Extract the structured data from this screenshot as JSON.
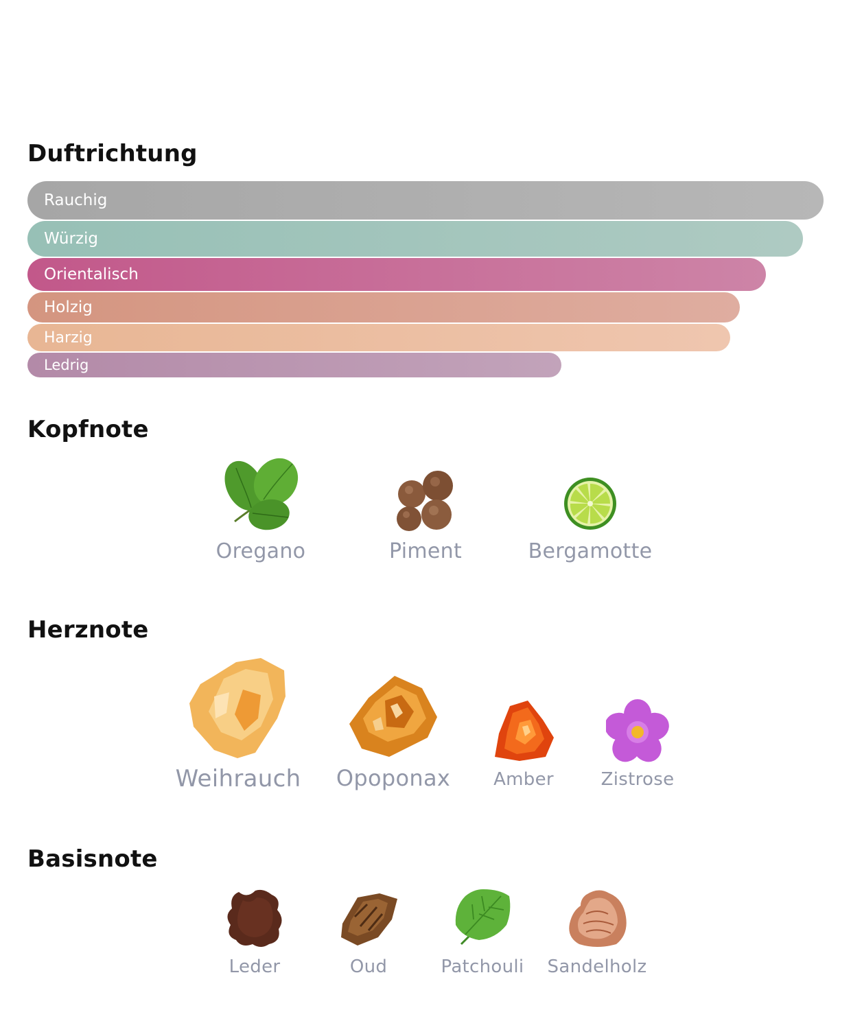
{
  "duftrichtung": {
    "title": "Duftrichtung",
    "bars": [
      {
        "label": "Rauchig",
        "color_from": "#a6a6a6",
        "color_to": "#b7b7b7"
      },
      {
        "label": "Würzig",
        "color_from": "#97c0b6",
        "color_to": "#aecac2"
      },
      {
        "label": "Orientalisch",
        "color_from": "#c2588a",
        "color_to": "#cd84a7"
      },
      {
        "label": "Holzig",
        "color_from": "#d49580",
        "color_to": "#dfada0"
      },
      {
        "label": "Harzig",
        "color_from": "#e8b694",
        "color_to": "#efc6af"
      },
      {
        "label": "Ledrig",
        "color_from": "#b38aa8",
        "color_to": "#c2a3ba"
      }
    ]
  },
  "kopfnote": {
    "title": "Kopfnote",
    "items": [
      {
        "label": "Oregano",
        "icon": "oregano-leaves-icon"
      },
      {
        "label": "Piment",
        "icon": "allspice-berries-icon"
      },
      {
        "label": "Bergamotte",
        "icon": "bergamot-slice-icon"
      }
    ]
  },
  "herznote": {
    "title": "Herznote",
    "items": [
      {
        "label": "Weihrauch",
        "icon": "frankincense-resin-icon"
      },
      {
        "label": "Opoponax",
        "icon": "opoponax-resin-icon"
      },
      {
        "label": "Amber",
        "icon": "amber-stone-icon"
      },
      {
        "label": "Zistrose",
        "icon": "rockrose-flower-icon"
      }
    ]
  },
  "basisnote": {
    "title": "Basisnote",
    "items": [
      {
        "label": "Leder",
        "icon": "leather-piece-icon"
      },
      {
        "label": "Oud",
        "icon": "oud-wood-icon"
      },
      {
        "label": "Patchouli",
        "icon": "patchouli-leaf-icon"
      },
      {
        "label": "Sandelholz",
        "icon": "sandalwood-piece-icon"
      }
    ]
  }
}
